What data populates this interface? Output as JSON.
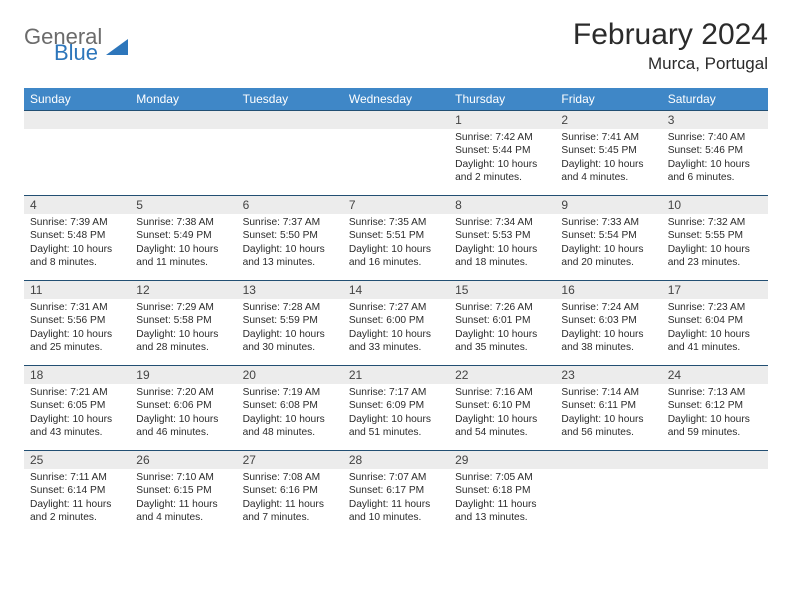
{
  "logo": {
    "word1": "General",
    "word2": "Blue"
  },
  "title": "February 2024",
  "location": "Murca, Portugal",
  "colors": {
    "header_bg": "#3f87c7",
    "header_text": "#ffffff",
    "rule": "#224f73",
    "daynum_bg": "#ececec",
    "text": "#2b2b2b",
    "logo_gray": "#6b6b6b",
    "logo_blue": "#2d76bb",
    "page_bg": "#ffffff"
  },
  "day_names": [
    "Sunday",
    "Monday",
    "Tuesday",
    "Wednesday",
    "Thursday",
    "Friday",
    "Saturday"
  ],
  "weeks": [
    [
      {
        "n": "",
        "sr": "",
        "ss": "",
        "dl": ""
      },
      {
        "n": "",
        "sr": "",
        "ss": "",
        "dl": ""
      },
      {
        "n": "",
        "sr": "",
        "ss": "",
        "dl": ""
      },
      {
        "n": "",
        "sr": "",
        "ss": "",
        "dl": ""
      },
      {
        "n": "1",
        "sr": "Sunrise: 7:42 AM",
        "ss": "Sunset: 5:44 PM",
        "dl": "Daylight: 10 hours and 2 minutes."
      },
      {
        "n": "2",
        "sr": "Sunrise: 7:41 AM",
        "ss": "Sunset: 5:45 PM",
        "dl": "Daylight: 10 hours and 4 minutes."
      },
      {
        "n": "3",
        "sr": "Sunrise: 7:40 AM",
        "ss": "Sunset: 5:46 PM",
        "dl": "Daylight: 10 hours and 6 minutes."
      }
    ],
    [
      {
        "n": "4",
        "sr": "Sunrise: 7:39 AM",
        "ss": "Sunset: 5:48 PM",
        "dl": "Daylight: 10 hours and 8 minutes."
      },
      {
        "n": "5",
        "sr": "Sunrise: 7:38 AM",
        "ss": "Sunset: 5:49 PM",
        "dl": "Daylight: 10 hours and 11 minutes."
      },
      {
        "n": "6",
        "sr": "Sunrise: 7:37 AM",
        "ss": "Sunset: 5:50 PM",
        "dl": "Daylight: 10 hours and 13 minutes."
      },
      {
        "n": "7",
        "sr": "Sunrise: 7:35 AM",
        "ss": "Sunset: 5:51 PM",
        "dl": "Daylight: 10 hours and 16 minutes."
      },
      {
        "n": "8",
        "sr": "Sunrise: 7:34 AM",
        "ss": "Sunset: 5:53 PM",
        "dl": "Daylight: 10 hours and 18 minutes."
      },
      {
        "n": "9",
        "sr": "Sunrise: 7:33 AM",
        "ss": "Sunset: 5:54 PM",
        "dl": "Daylight: 10 hours and 20 minutes."
      },
      {
        "n": "10",
        "sr": "Sunrise: 7:32 AM",
        "ss": "Sunset: 5:55 PM",
        "dl": "Daylight: 10 hours and 23 minutes."
      }
    ],
    [
      {
        "n": "11",
        "sr": "Sunrise: 7:31 AM",
        "ss": "Sunset: 5:56 PM",
        "dl": "Daylight: 10 hours and 25 minutes."
      },
      {
        "n": "12",
        "sr": "Sunrise: 7:29 AM",
        "ss": "Sunset: 5:58 PM",
        "dl": "Daylight: 10 hours and 28 minutes."
      },
      {
        "n": "13",
        "sr": "Sunrise: 7:28 AM",
        "ss": "Sunset: 5:59 PM",
        "dl": "Daylight: 10 hours and 30 minutes."
      },
      {
        "n": "14",
        "sr": "Sunrise: 7:27 AM",
        "ss": "Sunset: 6:00 PM",
        "dl": "Daylight: 10 hours and 33 minutes."
      },
      {
        "n": "15",
        "sr": "Sunrise: 7:26 AM",
        "ss": "Sunset: 6:01 PM",
        "dl": "Daylight: 10 hours and 35 minutes."
      },
      {
        "n": "16",
        "sr": "Sunrise: 7:24 AM",
        "ss": "Sunset: 6:03 PM",
        "dl": "Daylight: 10 hours and 38 minutes."
      },
      {
        "n": "17",
        "sr": "Sunrise: 7:23 AM",
        "ss": "Sunset: 6:04 PM",
        "dl": "Daylight: 10 hours and 41 minutes."
      }
    ],
    [
      {
        "n": "18",
        "sr": "Sunrise: 7:21 AM",
        "ss": "Sunset: 6:05 PM",
        "dl": "Daylight: 10 hours and 43 minutes."
      },
      {
        "n": "19",
        "sr": "Sunrise: 7:20 AM",
        "ss": "Sunset: 6:06 PM",
        "dl": "Daylight: 10 hours and 46 minutes."
      },
      {
        "n": "20",
        "sr": "Sunrise: 7:19 AM",
        "ss": "Sunset: 6:08 PM",
        "dl": "Daylight: 10 hours and 48 minutes."
      },
      {
        "n": "21",
        "sr": "Sunrise: 7:17 AM",
        "ss": "Sunset: 6:09 PM",
        "dl": "Daylight: 10 hours and 51 minutes."
      },
      {
        "n": "22",
        "sr": "Sunrise: 7:16 AM",
        "ss": "Sunset: 6:10 PM",
        "dl": "Daylight: 10 hours and 54 minutes."
      },
      {
        "n": "23",
        "sr": "Sunrise: 7:14 AM",
        "ss": "Sunset: 6:11 PM",
        "dl": "Daylight: 10 hours and 56 minutes."
      },
      {
        "n": "24",
        "sr": "Sunrise: 7:13 AM",
        "ss": "Sunset: 6:12 PM",
        "dl": "Daylight: 10 hours and 59 minutes."
      }
    ],
    [
      {
        "n": "25",
        "sr": "Sunrise: 7:11 AM",
        "ss": "Sunset: 6:14 PM",
        "dl": "Daylight: 11 hours and 2 minutes."
      },
      {
        "n": "26",
        "sr": "Sunrise: 7:10 AM",
        "ss": "Sunset: 6:15 PM",
        "dl": "Daylight: 11 hours and 4 minutes."
      },
      {
        "n": "27",
        "sr": "Sunrise: 7:08 AM",
        "ss": "Sunset: 6:16 PM",
        "dl": "Daylight: 11 hours and 7 minutes."
      },
      {
        "n": "28",
        "sr": "Sunrise: 7:07 AM",
        "ss": "Sunset: 6:17 PM",
        "dl": "Daylight: 11 hours and 10 minutes."
      },
      {
        "n": "29",
        "sr": "Sunrise: 7:05 AM",
        "ss": "Sunset: 6:18 PM",
        "dl": "Daylight: 11 hours and 13 minutes."
      },
      {
        "n": "",
        "sr": "",
        "ss": "",
        "dl": ""
      },
      {
        "n": "",
        "sr": "",
        "ss": "",
        "dl": ""
      }
    ]
  ]
}
